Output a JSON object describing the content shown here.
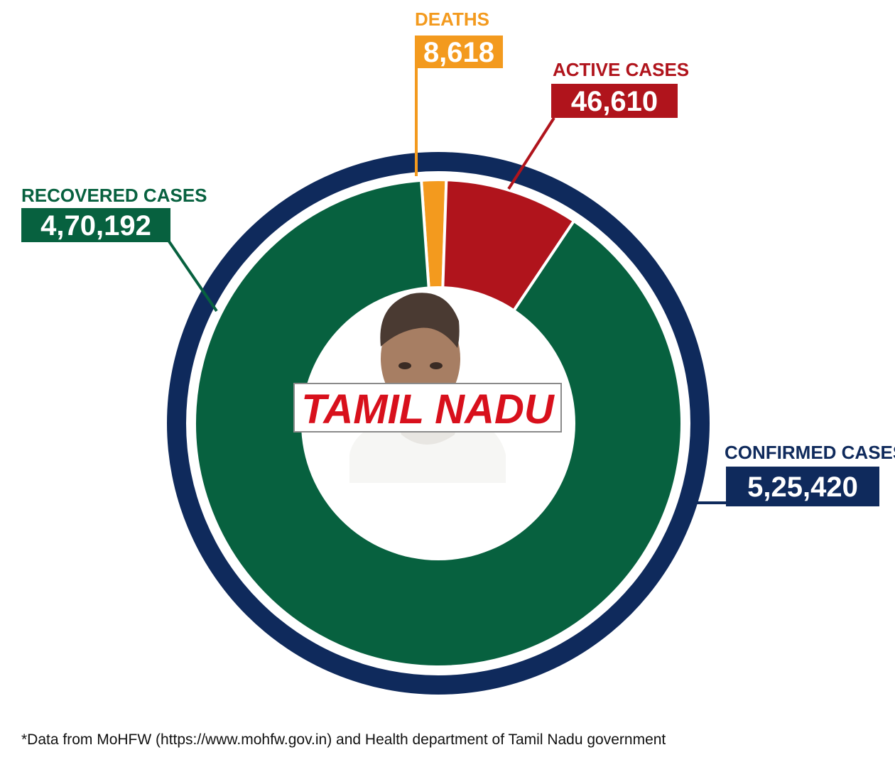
{
  "chart_data": {
    "type": "pie",
    "title": "",
    "center_label": "TAMIL NADU",
    "total": {
      "label": "CONFIRMED CASES",
      "value": 525420,
      "value_text": "5,25,420",
      "color": "#0f2a5c"
    },
    "slices": [
      {
        "key": "deaths",
        "label": "DEATHS",
        "value": 8618,
        "value_text": "8,618",
        "color": "#f39a1e",
        "label_color": "#f39a1e"
      },
      {
        "key": "active",
        "label": "ACTIVE CASES",
        "value": 46610,
        "value_text": "46,610",
        "color": "#b0141c",
        "label_color": "#b0141c"
      },
      {
        "key": "recovered",
        "label": "RECOVERED CASES",
        "value": 470192,
        "value_text": "4,70,192",
        "color": "#07613f",
        "label_color": "#07613f"
      }
    ],
    "center_label_color": "#d8101c"
  },
  "footnote": "*Data from MoHFW (https://www.mohfw.gov.in) and Health department of Tamil Nadu government"
}
